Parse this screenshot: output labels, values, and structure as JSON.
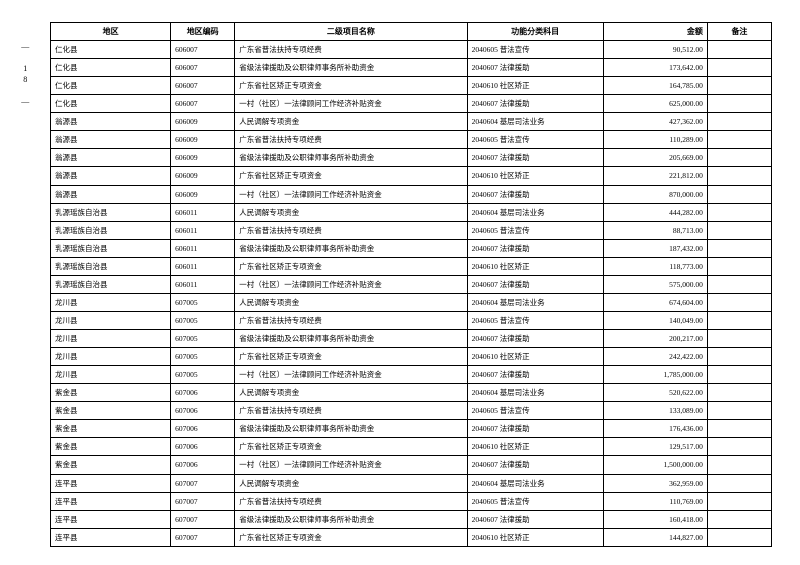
{
  "page_number": "— 18 —",
  "columns": [
    "地区",
    "地区编码",
    "二级项目名称",
    "功能分类科目",
    "金额",
    "备注"
  ],
  "rows": [
    [
      "仁化县",
      "606007",
      "广东省普法扶持专项经费",
      "2040605 普法宣传",
      "90,512.00",
      ""
    ],
    [
      "仁化县",
      "606007",
      "省级法律援助及公职律师事务所补助资金",
      "2040607 法律援助",
      "173,642.00",
      ""
    ],
    [
      "仁化县",
      "606007",
      "广东省社区矫正专项资金",
      "2040610 社区矫正",
      "164,785.00",
      ""
    ],
    [
      "仁化县",
      "606007",
      "一村（社区）一法律顾问工作经济补贴资金",
      "2040607 法律援助",
      "625,000.00",
      ""
    ],
    [
      "翁源县",
      "606009",
      "人民调解专项资金",
      "2040604 基层司法业务",
      "427,362.00",
      ""
    ],
    [
      "翁源县",
      "606009",
      "广东省普法扶持专项经费",
      "2040605 普法宣传",
      "110,289.00",
      ""
    ],
    [
      "翁源县",
      "606009",
      "省级法律援助及公职律师事务所补助资金",
      "2040607 法律援助",
      "205,669.00",
      ""
    ],
    [
      "翁源县",
      "606009",
      "广东省社区矫正专项资金",
      "2040610 社区矫正",
      "221,812.00",
      ""
    ],
    [
      "翁源县",
      "606009",
      "一村（社区）一法律顾问工作经济补贴资金",
      "2040607 法律援助",
      "870,000.00",
      ""
    ],
    [
      "乳源瑶族自治县",
      "606011",
      "人民调解专项资金",
      "2040604 基层司法业务",
      "444,282.00",
      ""
    ],
    [
      "乳源瑶族自治县",
      "606011",
      "广东省普法扶持专项经费",
      "2040605 普法宣传",
      "88,713.00",
      ""
    ],
    [
      "乳源瑶族自治县",
      "606011",
      "省级法律援助及公职律师事务所补助资金",
      "2040607 法律援助",
      "187,432.00",
      ""
    ],
    [
      "乳源瑶族自治县",
      "606011",
      "广东省社区矫正专项资金",
      "2040610 社区矫正",
      "118,773.00",
      ""
    ],
    [
      "乳源瑶族自治县",
      "606011",
      "一村（社区）一法律顾问工作经济补贴资金",
      "2040607 法律援助",
      "575,000.00",
      ""
    ],
    [
      "龙川县",
      "607005",
      "人民调解专项资金",
      "2040604 基层司法业务",
      "674,604.00",
      ""
    ],
    [
      "龙川县",
      "607005",
      "广东省普法扶持专项经费",
      "2040605 普法宣传",
      "140,049.00",
      ""
    ],
    [
      "龙川县",
      "607005",
      "省级法律援助及公职律师事务所补助资金",
      "2040607 法律援助",
      "200,217.00",
      ""
    ],
    [
      "龙川县",
      "607005",
      "广东省社区矫正专项资金",
      "2040610 社区矫正",
      "242,422.00",
      ""
    ],
    [
      "龙川县",
      "607005",
      "一村（社区）一法律顾问工作经济补贴资金",
      "2040607 法律援助",
      "1,785,000.00",
      ""
    ],
    [
      "紫金县",
      "607006",
      "人民调解专项资金",
      "2040604 基层司法业务",
      "520,622.00",
      ""
    ],
    [
      "紫金县",
      "607006",
      "广东省普法扶持专项经费",
      "2040605 普法宣传",
      "133,089.00",
      ""
    ],
    [
      "紫金县",
      "607006",
      "省级法律援助及公职律师事务所补助资金",
      "2040607 法律援助",
      "176,436.00",
      ""
    ],
    [
      "紫金县",
      "607006",
      "广东省社区矫正专项资金",
      "2040610 社区矫正",
      "129,517.00",
      ""
    ],
    [
      "紫金县",
      "607006",
      "一村（社区）一法律顾问工作经济补贴资金",
      "2040607 法律援助",
      "1,500,000.00",
      ""
    ],
    [
      "连平县",
      "607007",
      "人民调解专项资金",
      "2040604 基层司法业务",
      "362,959.00",
      ""
    ],
    [
      "连平县",
      "607007",
      "广东省普法扶持专项经费",
      "2040605 普法宣传",
      "110,769.00",
      ""
    ],
    [
      "连平县",
      "607007",
      "省级法律援助及公职律师事务所补助资金",
      "2040607 法律援助",
      "160,418.00",
      ""
    ],
    [
      "连平县",
      "607007",
      "广东省社区矫正专项资金",
      "2040610 社区矫正",
      "144,827.00",
      ""
    ]
  ]
}
